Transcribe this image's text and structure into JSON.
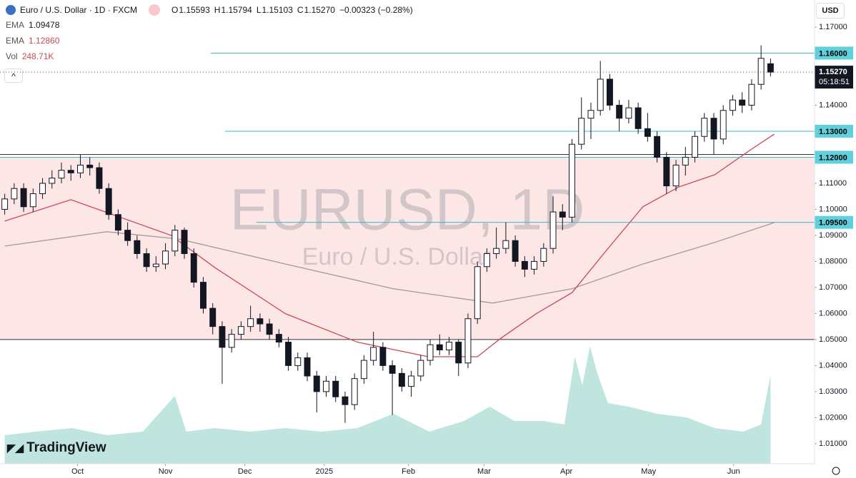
{
  "header": {
    "symbol": "Euro / U.S. Dollar · 1D · FXCM",
    "quote": [
      [
        "O",
        "1.15593"
      ],
      [
        "H",
        "1.15794"
      ],
      [
        "L",
        "1.15103"
      ],
      [
        "C",
        "1.15270"
      ]
    ],
    "change": "−0.00323 (−0.28%)",
    "currency": "USD",
    "logo": "TradingView"
  },
  "chart_data": {
    "type": "candlestick",
    "watermark": "EURUSD, 1D",
    "watermark_sub": "Euro / U.S. Dollar",
    "ohlc": [
      [
        1.1,
        1.106,
        1.098,
        1.104
      ],
      [
        1.104,
        1.11,
        1.102,
        1.108
      ],
      [
        1.108,
        1.11,
        1.099,
        1.101
      ],
      [
        1.101,
        1.108,
        1.099,
        1.106
      ],
      [
        1.106,
        1.112,
        1.104,
        1.11
      ],
      [
        1.11,
        1.115,
        1.108,
        1.112
      ],
      [
        1.112,
        1.118,
        1.11,
        1.115
      ],
      [
        1.115,
        1.117,
        1.111,
        1.114
      ],
      [
        1.114,
        1.121,
        1.112,
        1.117
      ],
      [
        1.117,
        1.12,
        1.113,
        1.116
      ],
      [
        1.116,
        1.118,
        1.106,
        1.108
      ],
      [
        1.108,
        1.11,
        1.096,
        1.098
      ],
      [
        1.098,
        1.1,
        1.09,
        1.092
      ],
      [
        1.092,
        1.095,
        1.086,
        1.088
      ],
      [
        1.088,
        1.09,
        1.081,
        1.083
      ],
      [
        1.083,
        1.085,
        1.076,
        1.078
      ],
      [
        1.078,
        1.082,
        1.076,
        1.079
      ],
      [
        1.079,
        1.087,
        1.077,
        1.084
      ],
      [
        1.084,
        1.094,
        1.082,
        1.092
      ],
      [
        1.092,
        1.093,
        1.081,
        1.083
      ],
      [
        1.083,
        1.085,
        1.07,
        1.072
      ],
      [
        1.072,
        1.074,
        1.06,
        1.062
      ],
      [
        1.062,
        1.064,
        1.052,
        1.055
      ],
      [
        1.055,
        1.057,
        1.033,
        1.047
      ],
      [
        1.047,
        1.054,
        1.045,
        1.052
      ],
      [
        1.052,
        1.057,
        1.05,
        1.055
      ],
      [
        1.055,
        1.063,
        1.053,
        1.058
      ],
      [
        1.058,
        1.06,
        1.053,
        1.056
      ],
      [
        1.056,
        1.058,
        1.05,
        1.052
      ],
      [
        1.052,
        1.054,
        1.047,
        1.049
      ],
      [
        1.049,
        1.051,
        1.038,
        1.04
      ],
      [
        1.04,
        1.045,
        1.038,
        1.043
      ],
      [
        1.043,
        1.045,
        1.034,
        1.036
      ],
      [
        1.036,
        1.038,
        1.022,
        1.03
      ],
      [
        1.03,
        1.036,
        1.028,
        1.034
      ],
      [
        1.034,
        1.036,
        1.026,
        1.028
      ],
      [
        1.028,
        1.03,
        1.018,
        1.025
      ],
      [
        1.025,
        1.037,
        1.023,
        1.035
      ],
      [
        1.035,
        1.044,
        1.033,
        1.042
      ],
      [
        1.042,
        1.053,
        1.04,
        1.047
      ],
      [
        1.047,
        1.049,
        1.038,
        1.04
      ],
      [
        1.04,
        1.042,
        1.021,
        1.037
      ],
      [
        1.037,
        1.039,
        1.03,
        1.032
      ],
      [
        1.032,
        1.038,
        1.028,
        1.036
      ],
      [
        1.036,
        1.044,
        1.034,
        1.042
      ],
      [
        1.042,
        1.05,
        1.04,
        1.048
      ],
      [
        1.048,
        1.052,
        1.044,
        1.046
      ],
      [
        1.046,
        1.051,
        1.044,
        1.049
      ],
      [
        1.049,
        1.05,
        1.036,
        1.041
      ],
      [
        1.041,
        1.06,
        1.039,
        1.058
      ],
      [
        1.058,
        1.08,
        1.056,
        1.078
      ],
      [
        1.078,
        1.085,
        1.076,
        1.083
      ],
      [
        1.083,
        1.093,
        1.081,
        1.085
      ],
      [
        1.085,
        1.095,
        1.083,
        1.088
      ],
      [
        1.088,
        1.09,
        1.078,
        1.08
      ],
      [
        1.08,
        1.082,
        1.074,
        1.077
      ],
      [
        1.077,
        1.082,
        1.075,
        1.08
      ],
      [
        1.08,
        1.087,
        1.078,
        1.085
      ],
      [
        1.085,
        1.105,
        1.083,
        1.099
      ],
      [
        1.099,
        1.102,
        1.092,
        1.097
      ],
      [
        1.097,
        1.127,
        1.095,
        1.125
      ],
      [
        1.125,
        1.143,
        1.123,
        1.135
      ],
      [
        1.135,
        1.141,
        1.127,
        1.138
      ],
      [
        1.138,
        1.157,
        1.136,
        1.15
      ],
      [
        1.15,
        1.152,
        1.138,
        1.14
      ],
      [
        1.14,
        1.142,
        1.13,
        1.135
      ],
      [
        1.135,
        1.142,
        1.133,
        1.139
      ],
      [
        1.139,
        1.141,
        1.129,
        1.131
      ],
      [
        1.131,
        1.137,
        1.126,
        1.128
      ],
      [
        1.128,
        1.13,
        1.118,
        1.12
      ],
      [
        1.12,
        1.122,
        1.106,
        1.109
      ],
      [
        1.109,
        1.119,
        1.107,
        1.117
      ],
      [
        1.117,
        1.124,
        1.113,
        1.12
      ],
      [
        1.12,
        1.13,
        1.118,
        1.128
      ],
      [
        1.128,
        1.137,
        1.126,
        1.135
      ],
      [
        1.135,
        1.137,
        1.121,
        1.127
      ],
      [
        1.127,
        1.14,
        1.125,
        1.138
      ],
      [
        1.138,
        1.144,
        1.136,
        1.142
      ],
      [
        1.142,
        1.145,
        1.137,
        1.14
      ],
      [
        1.14,
        1.15,
        1.138,
        1.148
      ],
      [
        1.148,
        1.163,
        1.146,
        1.158
      ],
      [
        1.15593,
        1.15794,
        1.15103,
        1.1527
      ]
    ],
    "colors": {
      "up": "#ffffff",
      "down": "#131722"
    },
    "xlim": [
      -0.5,
      81.5
    ],
    "xticks": [
      {
        "value": 7.7,
        "label": "Oct"
      },
      {
        "value": 17.0,
        "label": "Nov"
      },
      {
        "value": 25.4,
        "label": "Dec"
      },
      {
        "value": 33.8,
        "label": "2025"
      },
      {
        "value": 42.7,
        "label": "Feb"
      },
      {
        "value": 50.7,
        "label": "Mar"
      },
      {
        "value": 59.4,
        "label": "Apr"
      },
      {
        "value": 68.1,
        "label": "May"
      },
      {
        "value": 77.1,
        "label": "Jun"
      }
    ],
    "ylim": [
      1.0023,
      1.1804
    ],
    "yticks": [
      {
        "value": 1.17,
        "label": "1.17000"
      },
      {
        "value": 1.14,
        "label": "1.14000"
      },
      {
        "value": 1.11,
        "label": "1.11000"
      },
      {
        "value": 1.1,
        "label": "1.10000"
      },
      {
        "value": 1.09,
        "label": "1.09000"
      },
      {
        "value": 1.08,
        "label": "1.08000"
      },
      {
        "value": 1.07,
        "label": "1.07000"
      },
      {
        "value": 1.06,
        "label": "1.06000"
      },
      {
        "value": 1.05,
        "label": "1.05000"
      },
      {
        "value": 1.04,
        "label": "1.04000"
      },
      {
        "value": 1.03,
        "label": "1.03000"
      },
      {
        "value": 1.02,
        "label": "1.02000"
      },
      {
        "value": 1.01,
        "label": "1.01000"
      }
    ],
    "zone": {
      "from": 1.05,
      "to": 1.12,
      "color": "#fde6e6"
    },
    "level_color": "#3bb8c4",
    "levels": [
      {
        "value": 1.16,
        "label": "1.16000",
        "from": 21.8
      },
      {
        "value": 1.13,
        "label": "1.13000",
        "from": 23.3
      },
      {
        "value": 1.12,
        "label": "1.12000",
        "from": -0.5
      },
      {
        "value": 1.095,
        "label": "1.09500",
        "from": 26.6
      }
    ],
    "last": {
      "value": 1.1527,
      "label": "1.15270",
      "countdown": "05:18:51"
    },
    "series": [
      {
        "name": "EMA",
        "label": "1.09478",
        "color": "#a09a98",
        "x": [
          0,
          10.8,
          18.4,
          29.7,
          41.1,
          51.6,
          60,
          67.5,
          75.1,
          81.4
        ],
        "values": [
          1.0859,
          1.0914,
          1.0886,
          1.079,
          1.0695,
          1.064,
          1.0695,
          1.079,
          1.0873,
          1.0949
        ]
      },
      {
        "name": "EMA",
        "label": "1.12860",
        "color": "#c94a52",
        "x": [
          0,
          7,
          17.6,
          22.2,
          29.7,
          37.3,
          44.8,
          50,
          52.4,
          56.2,
          60,
          63.7,
          67.5,
          71.3,
          75.1,
          78.9,
          81.4
        ],
        "values": [
          1.0955,
          1.1037,
          1.09,
          1.0777,
          1.0599,
          1.049,
          1.0434,
          1.0434,
          1.0503,
          1.0599,
          1.068,
          1.0845,
          1.101,
          1.1086,
          1.1133,
          1.1229,
          1.1289
        ]
      }
    ],
    "volume": {
      "name": "Vol",
      "label": "248.71K",
      "color": "#8ccfc4",
      "vlim": [
        0,
        340
      ],
      "x": [
        0,
        3.3,
        7.1,
        10.8,
        14.6,
        18.0,
        19.2,
        22.2,
        26.0,
        29.7,
        33.5,
        37.3,
        41.1,
        44.9,
        48.6,
        51.3,
        53.9,
        57.0,
        59.2,
        60.3,
        61.1,
        61.9,
        62.6,
        63.8,
        66.0,
        69.0,
        72.1,
        75.1,
        78.1,
        80,
        81
      ],
      "values": [
        80,
        90,
        100,
        80,
        90,
        190,
        90,
        100,
        90,
        100,
        90,
        100,
        140,
        90,
        120,
        160,
        120,
        120,
        110,
        300,
        220,
        330,
        260,
        170,
        160,
        140,
        130,
        100,
        90,
        110,
        248.71
      ]
    }
  }
}
